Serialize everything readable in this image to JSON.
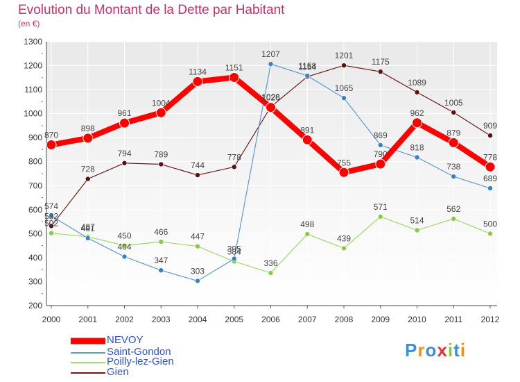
{
  "chart_data": {
    "type": "line",
    "title": "Evolution du Montant de la Dette par Habitant",
    "subtitle": "(en €)",
    "x": [
      "2000",
      "2001",
      "2002",
      "2003",
      "2004",
      "2005",
      "2006",
      "2007",
      "2008",
      "2009",
      "2010",
      "2011",
      "2012"
    ],
    "yticks": [
      200,
      300,
      400,
      500,
      600,
      700,
      800,
      900,
      1000,
      1100,
      1200,
      1300
    ],
    "ylim": [
      200,
      1300
    ],
    "series": [
      {
        "name": "NEVOY",
        "color": "#ff0000",
        "values": [
          870,
          898,
          961,
          1004,
          1134,
          1151,
          1026,
          891,
          755,
          790,
          962,
          879,
          778
        ]
      },
      {
        "name": "Saint-Gondon",
        "color": "#5b9bd5",
        "values": [
          574,
          481,
          404,
          347,
          303,
          395,
          1207,
          1158,
          1065,
          869,
          818,
          738,
          689
        ]
      },
      {
        "name": "Poilly-lez-Gien",
        "color": "#99dd66",
        "values": [
          502,
          487,
          450,
          466,
          447,
          384,
          336,
          498,
          439,
          571,
          514,
          562,
          500
        ]
      },
      {
        "name": "Gien",
        "color": "#6b1a1a",
        "values": [
          532,
          728,
          794,
          789,
          744,
          778,
          1028,
          1154,
          1201,
          1175,
          1089,
          1005,
          909
        ]
      }
    ]
  },
  "logo": {
    "letters": [
      "P",
      "r",
      "o",
      "x",
      "i",
      "t",
      "i"
    ],
    "colors": [
      "#3a8fd8",
      "#f0921a",
      "#3a8fd8",
      "#e5322d",
      "#8cc63e",
      "#3a8fd8",
      "#f0921a"
    ]
  }
}
